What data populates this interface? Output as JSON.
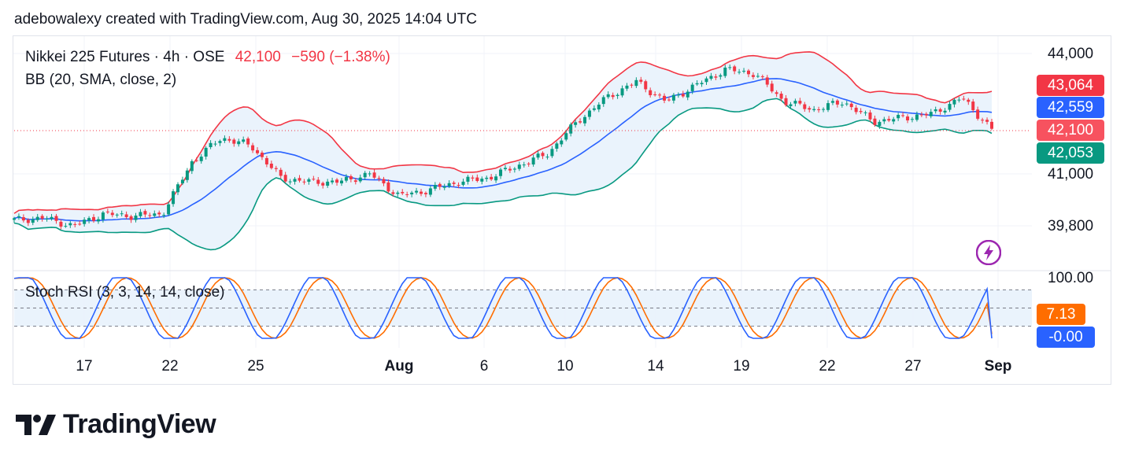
{
  "header": {
    "caption": "adebowalexy created with TradingView.com, Aug 30, 2025 14:04 UTC"
  },
  "legend": {
    "symbol": "Nikkei 225 Futures · 4h · OSE",
    "last": "42,100",
    "change": "−590 (−1.38%)",
    "bb_label": "BB (20, SMA, close, 2)",
    "stoch_label": "Stoch RSI (3, 3, 14, 14, close)"
  },
  "price_tags": [
    {
      "label": "43,064",
      "color": "#f23645"
    },
    {
      "label": "42,559",
      "color": "#2962ff"
    },
    {
      "label": "42,100",
      "color": "#f7525f"
    },
    {
      "label": "42,053",
      "color": "#089981"
    }
  ],
  "osc_tags": [
    {
      "label": "7.13",
      "color": "#ff6d00"
    },
    {
      "label": "-0.00",
      "color": "#2962ff"
    }
  ],
  "branding": {
    "logo_text": "TradingView"
  },
  "colors": {
    "up": "#089981",
    "down": "#f23645",
    "bb_upper": "#f23645",
    "bb_basis": "#2962ff",
    "bb_lower": "#089981",
    "bb_fill": "#eaf3fc",
    "k": "#2962ff",
    "d": "#ff6d00"
  },
  "chart_data": [
    {
      "type": "candlestick",
      "title": "Nikkei 225 Futures · 4h · OSE",
      "price_axis_labels": [
        "44,000",
        "41,000",
        "39,800"
      ],
      "date_axis_labels": [
        "17",
        "22",
        "25",
        "Aug",
        "6",
        "10",
        "14",
        "19",
        "22",
        "27",
        "Sep"
      ],
      "approx_close_path": [
        {
          "date": "Jul 14",
          "close": 39850
        },
        {
          "date": "Jul 16",
          "close": 39900
        },
        {
          "date": "Jul 17",
          "close": 39700
        },
        {
          "date": "Jul 18",
          "close": 40000
        },
        {
          "date": "Jul 21",
          "close": 39950
        },
        {
          "date": "Jul 22",
          "close": 40000
        },
        {
          "date": "Jul 23",
          "close": 41300
        },
        {
          "date": "Jul 24",
          "close": 41900
        },
        {
          "date": "Jul 25",
          "close": 41700
        },
        {
          "date": "Jul 28",
          "close": 40900
        },
        {
          "date": "Jul 29",
          "close": 40800
        },
        {
          "date": "Jul 30",
          "close": 40800
        },
        {
          "date": "Jul 31",
          "close": 41000
        },
        {
          "date": "Aug 1",
          "close": 40450
        },
        {
          "date": "Aug 4",
          "close": 40600
        },
        {
          "date": "Aug 5",
          "close": 40800
        },
        {
          "date": "Aug 6",
          "close": 40900
        },
        {
          "date": "Aug 7",
          "close": 41200
        },
        {
          "date": "Aug 8",
          "close": 41500
        },
        {
          "date": "Aug 11",
          "close": 42300
        },
        {
          "date": "Aug 12",
          "close": 42900
        },
        {
          "date": "Aug 13",
          "close": 43300
        },
        {
          "date": "Aug 14",
          "close": 42800
        },
        {
          "date": "Aug 15",
          "close": 43200
        },
        {
          "date": "Aug 18",
          "close": 43600
        },
        {
          "date": "Aug 19",
          "close": 43500
        },
        {
          "date": "Aug 20",
          "close": 42800
        },
        {
          "date": "Aug 21",
          "close": 42600
        },
        {
          "date": "Aug 22",
          "close": 42800
        },
        {
          "date": "Aug 25",
          "close": 42300
        },
        {
          "date": "Aug 26",
          "close": 42400
        },
        {
          "date": "Aug 27",
          "close": 42500
        },
        {
          "date": "Aug 28",
          "close": 42900
        },
        {
          "date": "Aug 29",
          "close": 42100
        }
      ],
      "indicators": {
        "bb_upper_last": 43064,
        "bb_basis_last": 42559,
        "bb_lower_last": 42053,
        "last_price": 42100
      }
    },
    {
      "type": "line",
      "title": "Stoch RSI (3, 3, 14, 14, close)",
      "y_axis_labels": [
        "100.00"
      ],
      "ylim": [
        0,
        100
      ],
      "bands": [
        80,
        20
      ],
      "series": [
        {
          "name": "K",
          "last": -0.0
        },
        {
          "name": "D",
          "last": 7.13
        }
      ]
    }
  ]
}
